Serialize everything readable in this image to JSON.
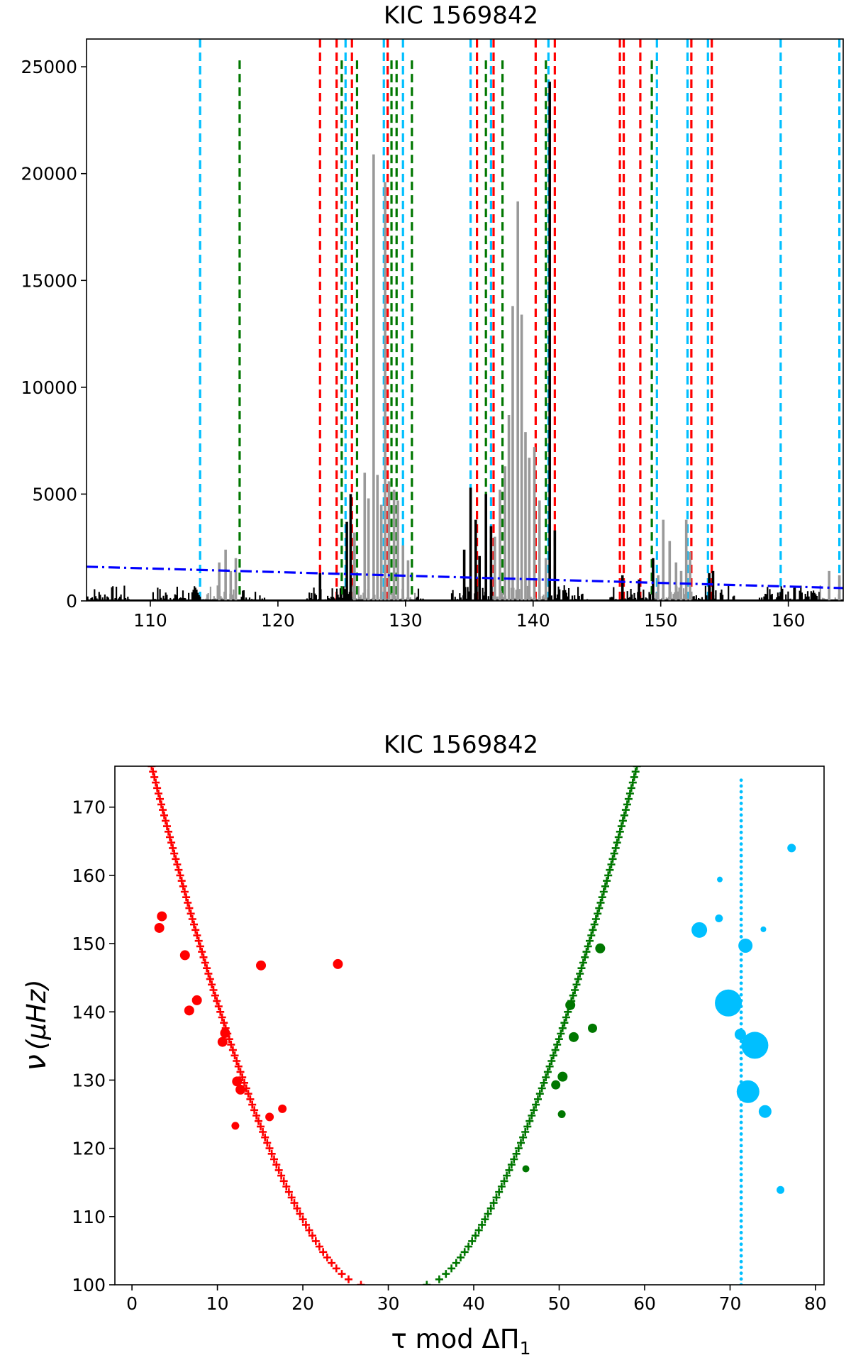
{
  "chart_data": [
    {
      "type": "line",
      "title": "KIC 1569842",
      "xlabel": "",
      "ylabel": "",
      "xlim": [
        105,
        164.3
      ],
      "ylim": [
        0,
        26300
      ],
      "xticks": [
        110,
        120,
        130,
        140,
        150,
        160
      ],
      "yticks": [
        0,
        5000,
        10000,
        15000,
        20000,
        25000
      ],
      "grid": false,
      "colors": {
        "spectrum": "#000000",
        "highlight": "#999999",
        "background_fit": "#0000ff",
        "red_modes": "#ff0000",
        "green_modes": "#007700",
        "cyan_modes": "#00bfff"
      },
      "background_fit": {
        "x": [
          105,
          164.3
        ],
        "y": [
          1600,
          600
        ]
      },
      "highlight_ranges": [
        [
          114.0,
          117.0
        ],
        [
          125.8,
          130.8
        ],
        [
          136.8,
          141.0
        ],
        [
          149.5,
          152.5
        ],
        [
          162.5,
          164.0
        ]
      ],
      "gaps": [
        [
          108.5,
          110.2
        ],
        [
          119.0,
          122.2
        ],
        [
          131.5,
          133.5
        ],
        [
          144.5,
          146.0
        ],
        [
          155.8,
          157.5
        ]
      ],
      "peaks": [
        {
          "x": 115.4,
          "y": 1800
        },
        {
          "x": 115.9,
          "y": 2400
        },
        {
          "x": 116.3,
          "y": 1400
        },
        {
          "x": 116.7,
          "y": 2000
        },
        {
          "x": 123.3,
          "y": 1300
        },
        {
          "x": 125.4,
          "y": 3700
        },
        {
          "x": 125.7,
          "y": 5000
        },
        {
          "x": 126.0,
          "y": 3200
        },
        {
          "x": 126.8,
          "y": 6000
        },
        {
          "x": 127.1,
          "y": 4800
        },
        {
          "x": 127.5,
          "y": 20900
        },
        {
          "x": 127.8,
          "y": 5900
        },
        {
          "x": 128.1,
          "y": 4500
        },
        {
          "x": 128.4,
          "y": 19600
        },
        {
          "x": 128.7,
          "y": 5600
        },
        {
          "x": 129.1,
          "y": 5200
        },
        {
          "x": 129.4,
          "y": 4700
        },
        {
          "x": 129.8,
          "y": 2600
        },
        {
          "x": 130.2,
          "y": 1900
        },
        {
          "x": 134.6,
          "y": 2400
        },
        {
          "x": 135.1,
          "y": 5300
        },
        {
          "x": 135.5,
          "y": 3800
        },
        {
          "x": 135.8,
          "y": 2100
        },
        {
          "x": 136.3,
          "y": 5000
        },
        {
          "x": 136.7,
          "y": 3500
        },
        {
          "x": 137.0,
          "y": 3000
        },
        {
          "x": 137.4,
          "y": 5200
        },
        {
          "x": 137.8,
          "y": 6300
        },
        {
          "x": 138.1,
          "y": 8700
        },
        {
          "x": 138.4,
          "y": 13800
        },
        {
          "x": 138.8,
          "y": 18700
        },
        {
          "x": 139.1,
          "y": 13400
        },
        {
          "x": 139.4,
          "y": 7900
        },
        {
          "x": 139.7,
          "y": 6700
        },
        {
          "x": 140.1,
          "y": 7200
        },
        {
          "x": 140.5,
          "y": 4700
        },
        {
          "x": 141.0,
          "y": 2000
        },
        {
          "x": 141.3,
          "y": 24300
        },
        {
          "x": 141.7,
          "y": 3300
        },
        {
          "x": 147.0,
          "y": 1200
        },
        {
          "x": 148.3,
          "y": 1000
        },
        {
          "x": 149.4,
          "y": 2000
        },
        {
          "x": 149.8,
          "y": 1200
        },
        {
          "x": 150.2,
          "y": 3800
        },
        {
          "x": 150.7,
          "y": 2800
        },
        {
          "x": 151.2,
          "y": 1800
        },
        {
          "x": 151.6,
          "y": 1400
        },
        {
          "x": 152.0,
          "y": 3800
        },
        {
          "x": 152.3,
          "y": 2300
        },
        {
          "x": 153.8,
          "y": 1300
        },
        {
          "x": 154.1,
          "y": 1400
        },
        {
          "x": 163.2,
          "y": 1400
        },
        {
          "x": 164.0,
          "y": 1200
        }
      ],
      "vlines": {
        "cyan": {
          "x": [
            113.9,
            125.3,
            128.3,
            129.8,
            135.1,
            136.7,
            141.2,
            149.7,
            152.1,
            153.7,
            159.4,
            164.0
          ],
          "top": 26300
        },
        "green": {
          "x": [
            117.0,
            125.0,
            126.2,
            128.9,
            129.3,
            130.5,
            136.3,
            137.6,
            141.0,
            149.3
          ],
          "top": 25300
        },
        "red": {
          "x": [
            123.3,
            124.6,
            125.8,
            128.6,
            135.6,
            136.9,
            140.2,
            141.7,
            146.8,
            147.1,
            148.4,
            152.4,
            154.0
          ],
          "top": 26300
        }
      }
    },
    {
      "type": "scatter",
      "title": "KIC 1569842",
      "xlabel": "τ mod ΔΠ",
      "xlabel_sub": "1",
      "ylabel_greek": "ν",
      "ylabel_unit": "(μHz)",
      "xlim": [
        -2,
        81
      ],
      "ylim": [
        100,
        176
      ],
      "xticks": [
        0,
        10,
        20,
        30,
        40,
        50,
        60,
        70,
        80
      ],
      "yticks": [
        100,
        110,
        120,
        130,
        140,
        150,
        160,
        170
      ],
      "grid": false,
      "model_curves": {
        "red": {
          "marker": "+",
          "x_at_100": 26.8,
          "x_at_176": 2.3
        },
        "green": {
          "marker": "+",
          "x_at_100": 34.5,
          "x_at_176": 59.1
        },
        "cyan": {
          "marker": ".",
          "x": 71.3,
          "y_range": [
            100,
            174.5
          ]
        }
      },
      "series": [
        {
          "name": "red",
          "color": "#ff0000",
          "points": [
            {
              "x": 3.5,
              "y": 154.0,
              "s": 7
            },
            {
              "x": 3.2,
              "y": 152.3,
              "s": 7
            },
            {
              "x": 6.2,
              "y": 148.3,
              "s": 7
            },
            {
              "x": 15.1,
              "y": 146.8,
              "s": 7
            },
            {
              "x": 24.1,
              "y": 147.0,
              "s": 7
            },
            {
              "x": 7.6,
              "y": 141.7,
              "s": 7
            },
            {
              "x": 6.7,
              "y": 140.2,
              "s": 7
            },
            {
              "x": 10.9,
              "y": 136.9,
              "s": 7
            },
            {
              "x": 10.6,
              "y": 135.6,
              "s": 7
            },
            {
              "x": 12.3,
              "y": 129.8,
              "s": 7
            },
            {
              "x": 12.7,
              "y": 128.6,
              "s": 7
            },
            {
              "x": 17.6,
              "y": 125.8,
              "s": 6
            },
            {
              "x": 16.1,
              "y": 124.6,
              "s": 6
            },
            {
              "x": 12.1,
              "y": 123.3,
              "s": 5.5
            }
          ]
        },
        {
          "name": "green",
          "color": "#007700",
          "points": [
            {
              "x": 54.8,
              "y": 149.3,
              "s": 7
            },
            {
              "x": 51.3,
              "y": 141.0,
              "s": 7
            },
            {
              "x": 53.9,
              "y": 137.6,
              "s": 6.5
            },
            {
              "x": 51.7,
              "y": 136.3,
              "s": 7
            },
            {
              "x": 50.4,
              "y": 130.5,
              "s": 7
            },
            {
              "x": 49.6,
              "y": 129.3,
              "s": 6.5
            },
            {
              "x": 50.3,
              "y": 125.0,
              "s": 5.5
            },
            {
              "x": 46.1,
              "y": 117.0,
              "s": 5
            }
          ]
        },
        {
          "name": "cyan",
          "color": "#00bfff",
          "points": [
            {
              "x": 77.2,
              "y": 164.0,
              "s": 6
            },
            {
              "x": 68.8,
              "y": 159.4,
              "s": 4
            },
            {
              "x": 68.7,
              "y": 153.7,
              "s": 5.5
            },
            {
              "x": 73.9,
              "y": 152.1,
              "s": 4
            },
            {
              "x": 66.4,
              "y": 152.0,
              "s": 11
            },
            {
              "x": 71.8,
              "y": 149.7,
              "s": 10
            },
            {
              "x": 69.8,
              "y": 141.3,
              "s": 19
            },
            {
              "x": 71.2,
              "y": 136.7,
              "s": 8
            },
            {
              "x": 72.9,
              "y": 135.1,
              "s": 19
            },
            {
              "x": 72.1,
              "y": 128.3,
              "s": 16
            },
            {
              "x": 74.1,
              "y": 125.4,
              "s": 9
            },
            {
              "x": 75.9,
              "y": 113.9,
              "s": 5.5
            }
          ]
        }
      ]
    }
  ]
}
